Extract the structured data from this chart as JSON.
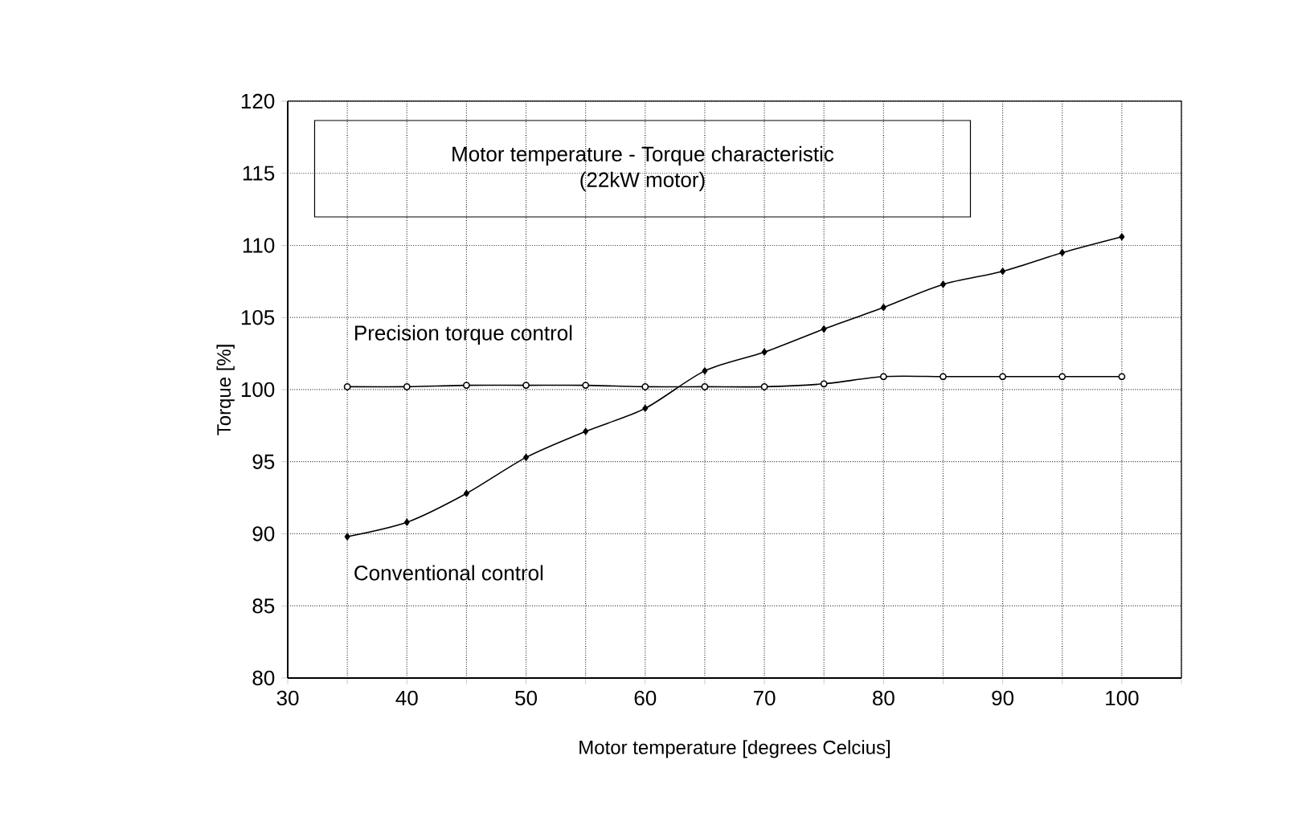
{
  "chart_data": {
    "type": "line",
    "title": "Motor temperature - Torque characteristic",
    "subtitle": "(22kW motor)",
    "xlabel": "Motor temperature [degrees Celcius]",
    "ylabel": "Torque [%]",
    "x": [
      35,
      40,
      45,
      50,
      55,
      60,
      65,
      70,
      75,
      80,
      85,
      90,
      95,
      100
    ],
    "series": [
      {
        "name": "Precision torque control",
        "color": "#000000",
        "marker": "circle",
        "values": [
          100.2,
          100.2,
          100.3,
          100.3,
          100.3,
          100.2,
          100.2,
          100.2,
          100.4,
          100.9,
          100.9,
          100.9,
          100.9,
          100.9
        ]
      },
      {
        "name": "Conventional control",
        "color": "#000000",
        "marker": "diamond",
        "values": [
          89.8,
          90.8,
          92.8,
          95.3,
          97.1,
          98.7,
          101.3,
          102.6,
          104.2,
          105.7,
          107.3,
          108.2,
          109.5,
          110.6
        ]
      }
    ],
    "xlim": [
      30,
      105
    ],
    "xticks": [
      30,
      {
        "value": 35,
        "label": null
      },
      40,
      {
        "value": 45,
        "label": null
      },
      50,
      {
        "value": 55,
        "label": null
      },
      60,
      {
        "value": 65,
        "label": null
      },
      70,
      {
        "value": 75,
        "label": null
      },
      80,
      {
        "value": 85,
        "label": null
      },
      90,
      {
        "value": 95,
        "label": null
      },
      100,
      {
        "value": 105,
        "label": null
      }
    ],
    "ylim": [
      80,
      120
    ],
    "yticks": [
      80,
      85,
      90,
      95,
      100,
      105,
      110,
      115,
      120
    ],
    "grid": true,
    "line_style": "solid"
  }
}
